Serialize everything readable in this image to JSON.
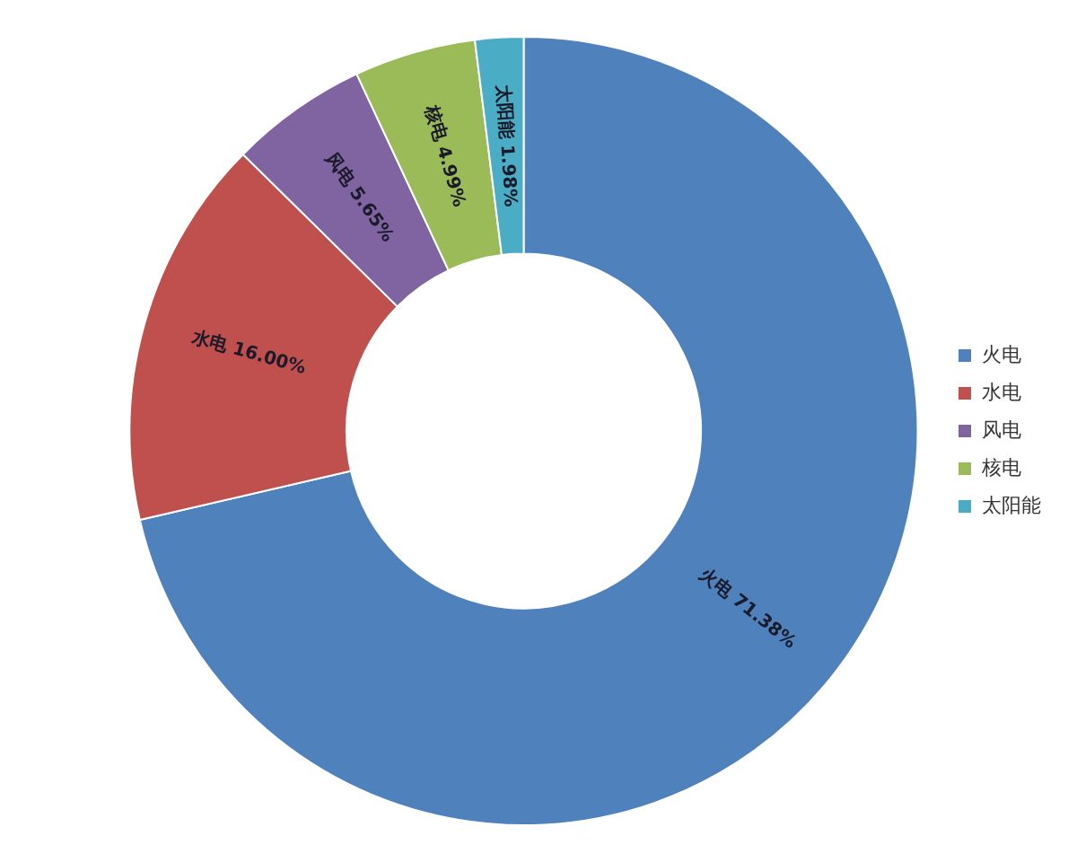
{
  "chart_data": {
    "type": "donut",
    "categories": [
      "火电",
      "水电",
      "风电",
      "核电",
      "太阳能"
    ],
    "values": [
      71.38,
      16.0,
      5.65,
      4.99,
      1.98
    ],
    "colors": [
      "#4f81bd",
      "#c0504d",
      "#8064a2",
      "#9bbb59",
      "#4bacc6"
    ],
    "value_labels": [
      "火电 71.38%",
      "水电 16.00%",
      "风电 5.65%",
      "核电 4.99%",
      "太阳能 1.98%"
    ],
    "legend": "right"
  }
}
